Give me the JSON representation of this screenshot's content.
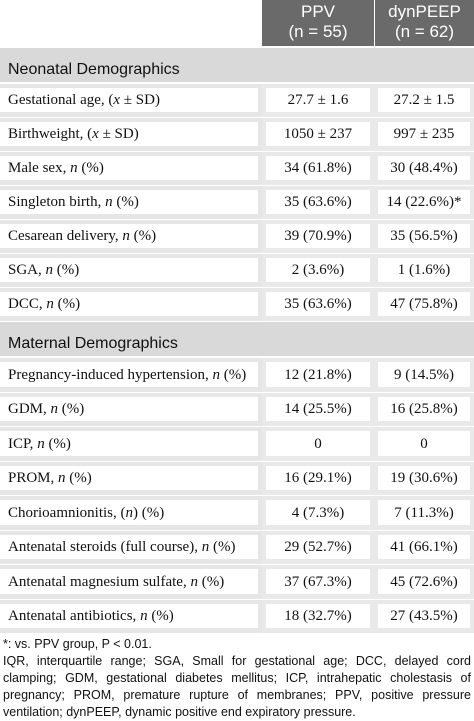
{
  "header": {
    "col1_name": "PPV",
    "col1_n": "(n = 55)",
    "col2_name": "dynPEEP",
    "col2_n": "(n = 62)"
  },
  "sections": [
    {
      "title": "Neonatal Demographics",
      "rows": [
        {
          "label": "Gestational age, (x ± SD)",
          "ppv": "27.7 ± 1.6",
          "dyn": "27.2 ± 1.5"
        },
        {
          "label": "Birthweight, (x ± SD)",
          "ppv": "1050 ± 237",
          "dyn": "997 ± 235"
        },
        {
          "label": "Male sex, n (%)",
          "ppv": "34 (61.8%)",
          "dyn": "30 (48.4%)"
        },
        {
          "label": "Singleton birth, n (%)",
          "ppv": "35 (63.6%)",
          "dyn": "14 (22.6%)*"
        },
        {
          "label": "Cesarean delivery, n (%)",
          "ppv": "39 (70.9%)",
          "dyn": "35 (56.5%)"
        },
        {
          "label": "SGA, n (%)",
          "ppv": "2 (3.6%)",
          "dyn": "1 (1.6%)"
        },
        {
          "label": "DCC, n (%)",
          "ppv": "35 (63.6%)",
          "dyn": "47 (75.8%)"
        }
      ]
    },
    {
      "title": "Maternal Demographics",
      "rows": [
        {
          "label": "Pregnancy-induced hypertension, n (%)",
          "ppv": "12 (21.8%)",
          "dyn": "9 (14.5%)"
        },
        {
          "label": "GDM, n (%)",
          "ppv": "14 (25.5%)",
          "dyn": "16 (25.8%)"
        },
        {
          "label": "ICP, n (%)",
          "ppv": "0",
          "dyn": "0"
        },
        {
          "label": "PROM, n (%)",
          "ppv": "16 (29.1%)",
          "dyn": "19 (30.6%)"
        },
        {
          "label": "Chorioamnionitis, (n) (%)",
          "ppv": "4 (7.3%)",
          "dyn": "7 (11.3%)"
        },
        {
          "label": "Antenatal steroids (full course), n (%)",
          "ppv": "29 (52.7%)",
          "dyn": "41 (66.1%)"
        },
        {
          "label": "Antenatal magnesium sulfate, n (%)",
          "ppv": "37 (67.3%)",
          "dyn": "45 (72.6%)"
        },
        {
          "label": "Antenatal antibiotics, n (%)",
          "ppv": "18 (32.7%)",
          "dyn": "27 (43.5%)"
        }
      ]
    }
  ],
  "footnotes": {
    "significance": "*: vs. PPV group, P < 0.01.",
    "abbreviations": "IQR, interquartile range; SGA, Small for gestational age; DCC, delayed cord clamping; GDM, gestational diabetes mellitus; ICP, intrahepatic cholestasis of pregnancy; PROM, premature rupture of membranes; PPV, positive pressure ventilation; dynPEEP, dynamic positive end expiratory pressure."
  }
}
